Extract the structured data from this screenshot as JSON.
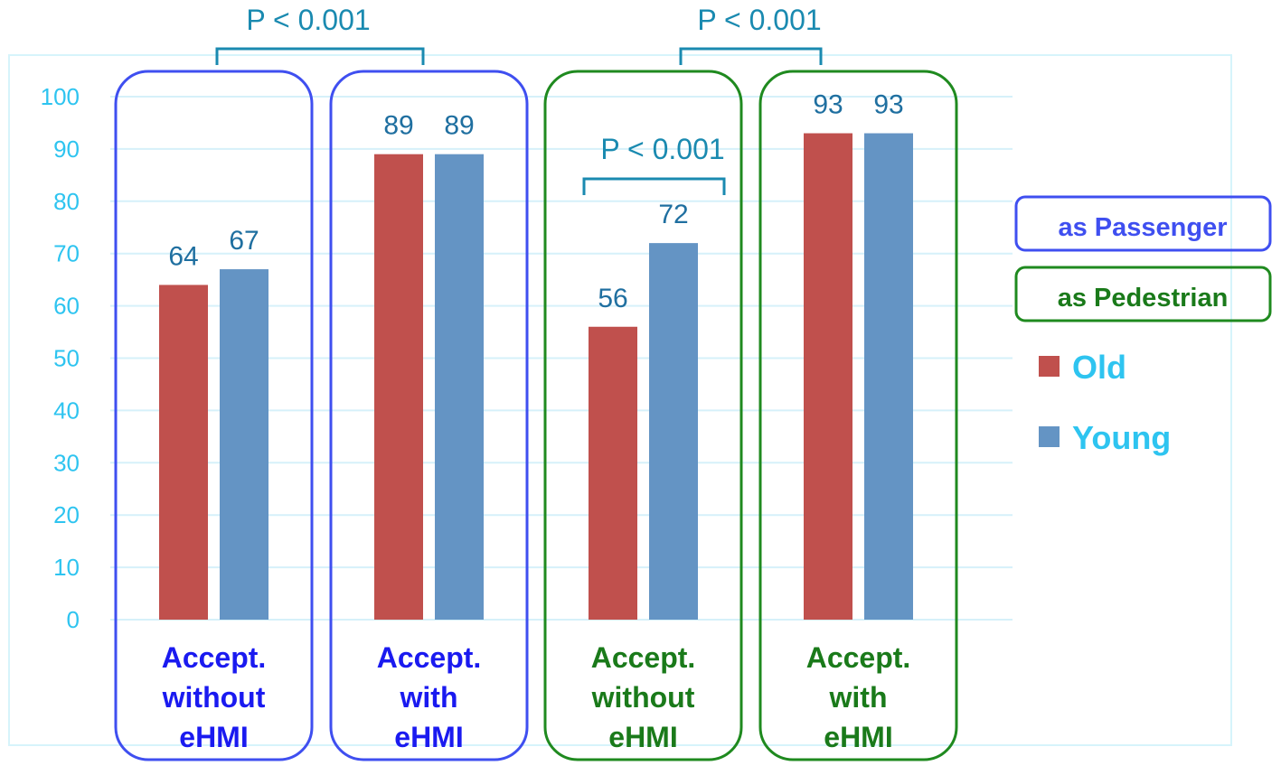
{
  "chart_data": {
    "type": "bar",
    "categories": [
      {
        "lines": [
          "Accept.",
          "without",
          "eHMI"
        ],
        "group": "passenger"
      },
      {
        "lines": [
          "Accept.",
          "with",
          "eHMI"
        ],
        "group": "passenger"
      },
      {
        "lines": [
          "Accept.",
          "without",
          "eHMI"
        ],
        "group": "pedestrian"
      },
      {
        "lines": [
          "Accept.",
          "with",
          "eHMI"
        ],
        "group": "pedestrian"
      }
    ],
    "series": [
      {
        "name": "Old",
        "color": "#c0504d",
        "values": [
          64,
          89,
          56,
          93
        ]
      },
      {
        "name": "Young",
        "color": "#6494c4",
        "values": [
          67,
          89,
          72,
          93
        ]
      }
    ],
    "value_labels": {
      "Old": [
        "64",
        "89",
        "56",
        "93"
      ],
      "Young": [
        "67",
        "89",
        "72",
        "93"
      ]
    },
    "yticks": [
      "0",
      "10",
      "20",
      "30",
      "40",
      "50",
      "60",
      "70",
      "80",
      "90",
      "100"
    ],
    "ylim": [
      0,
      100
    ],
    "grid": true,
    "groups": {
      "passenger": {
        "label": "as Passenger",
        "color": "#3f4ff0"
      },
      "pedestrian": {
        "label": "as Pedestrian",
        "color": "#1f8a1f"
      }
    },
    "significance": [
      {
        "label": "P < 0.001",
        "between": "categories 1 and 2"
      },
      {
        "label": "P < 0.001",
        "between": "categories 3 and 4"
      },
      {
        "label": "P < 0.001",
        "between": "Old and Young in category 3"
      }
    ],
    "legend_position": "right",
    "colors": {
      "tick": "#2ec4f0",
      "value_label": "#1f6fa0",
      "significance": "#1a8ab0",
      "category_passenger": "#1a1af0",
      "category_pedestrian": "#1a7a1a",
      "legend_text": "#2ec4f0"
    }
  }
}
